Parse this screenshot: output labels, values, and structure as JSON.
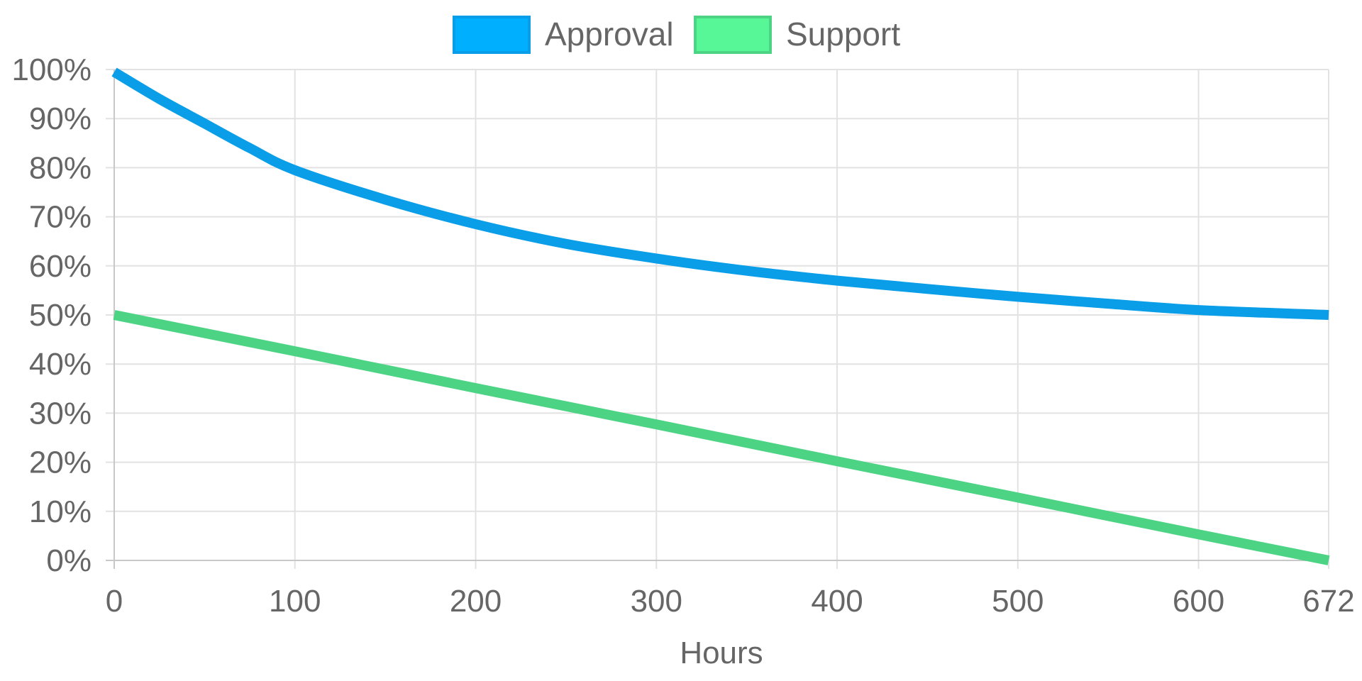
{
  "chart_data": {
    "type": "line",
    "title": "",
    "xlabel": "Hours",
    "ylabel": "",
    "xlim": [
      0,
      672
    ],
    "ylim": [
      0,
      100
    ],
    "x_ticks": [
      "0",
      "100",
      "200",
      "300",
      "400",
      "500",
      "600",
      "672"
    ],
    "x_tick_values": [
      0,
      100,
      200,
      300,
      400,
      500,
      600,
      672
    ],
    "y_ticks": [
      "0%",
      "10%",
      "20%",
      "30%",
      "40%",
      "50%",
      "60%",
      "70%",
      "80%",
      "90%",
      "100%"
    ],
    "y_tick_values": [
      0,
      10,
      20,
      30,
      40,
      50,
      60,
      70,
      80,
      90,
      100
    ],
    "grid": true,
    "legend_position": "top-center",
    "series": [
      {
        "name": "Approval",
        "color": "#0a9ee8",
        "legend_fill": "#00b0ff",
        "x": [
          0,
          25,
          50,
          75,
          100,
          150,
          200,
          250,
          300,
          350,
          400,
          450,
          500,
          550,
          600,
          672
        ],
        "y": [
          99.5,
          94,
          89,
          84,
          79.5,
          73.5,
          68.5,
          64.5,
          61.5,
          59,
          57,
          55.3,
          53.7,
          52.3,
          51,
          50
        ]
      },
      {
        "name": "Support",
        "color": "#4cd384",
        "legend_fill": "#57f697",
        "x": [
          0,
          100,
          200,
          300,
          400,
          500,
          600,
          672
        ],
        "y": [
          50,
          42.6,
          35.1,
          27.7,
          20.2,
          12.8,
          5.3,
          0
        ]
      }
    ]
  }
}
